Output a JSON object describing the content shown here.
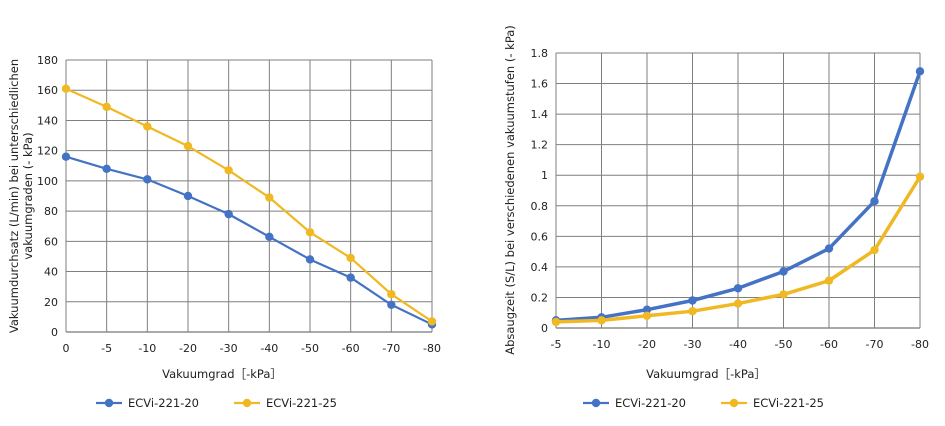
{
  "colors": {
    "series1": "#4472C4",
    "series2": "#F0B823",
    "grid": "#7f7f7f",
    "axis": "#555555"
  },
  "chart_data": [
    {
      "type": "line",
      "x": [
        "0",
        "-5",
        "-10",
        "-20",
        "-30",
        "-40",
        "-50",
        "-60",
        "-70",
        "-80"
      ],
      "xlabel": "Vakuumgrad［-kPa］",
      "ylabel_lines": [
        "Vakuumdurchsatz (L/min) bei unterschiedlichen",
        "vakuumgraden (- kPa)"
      ],
      "ylim": [
        0,
        180
      ],
      "yticks": [
        0,
        20,
        40,
        60,
        80,
        100,
        120,
        140,
        160,
        180
      ],
      "grid": true,
      "legend_position": "bottom",
      "series": [
        {
          "name": "ECVi-221-20",
          "values": [
            116,
            108,
            101,
            90,
            78,
            63,
            48,
            36,
            18,
            5
          ]
        },
        {
          "name": "ECVi-221-25",
          "values": [
            161,
            149,
            136,
            123,
            107,
            89,
            66,
            49,
            25,
            7
          ]
        }
      ]
    },
    {
      "type": "line",
      "x": [
        "-5",
        "-10",
        "-20",
        "-30",
        "-40",
        "-50",
        "-60",
        "-70",
        "-80"
      ],
      "xlabel": "Vakuumgrad［-kPa］",
      "ylabel_lines": [
        "Absaugzeit (S/L) bei verschiedenen vakuumstufen (- kPa)"
      ],
      "ylim": [
        0,
        1.8
      ],
      "yticks": [
        "0",
        "0.2",
        "0.4",
        "0.6",
        "0.8",
        "1",
        "1.2",
        "1.4",
        "1.6",
        "1.8"
      ],
      "grid": true,
      "legend_position": "bottom",
      "series": [
        {
          "name": "ECVi-221-20",
          "values": [
            0.05,
            0.07,
            0.12,
            0.18,
            0.26,
            0.37,
            0.52,
            0.83,
            1.68
          ]
        },
        {
          "name": "ECVi-221-25",
          "values": [
            0.04,
            0.05,
            0.08,
            0.11,
            0.16,
            0.22,
            0.31,
            0.51,
            0.99
          ]
        }
      ]
    }
  ]
}
